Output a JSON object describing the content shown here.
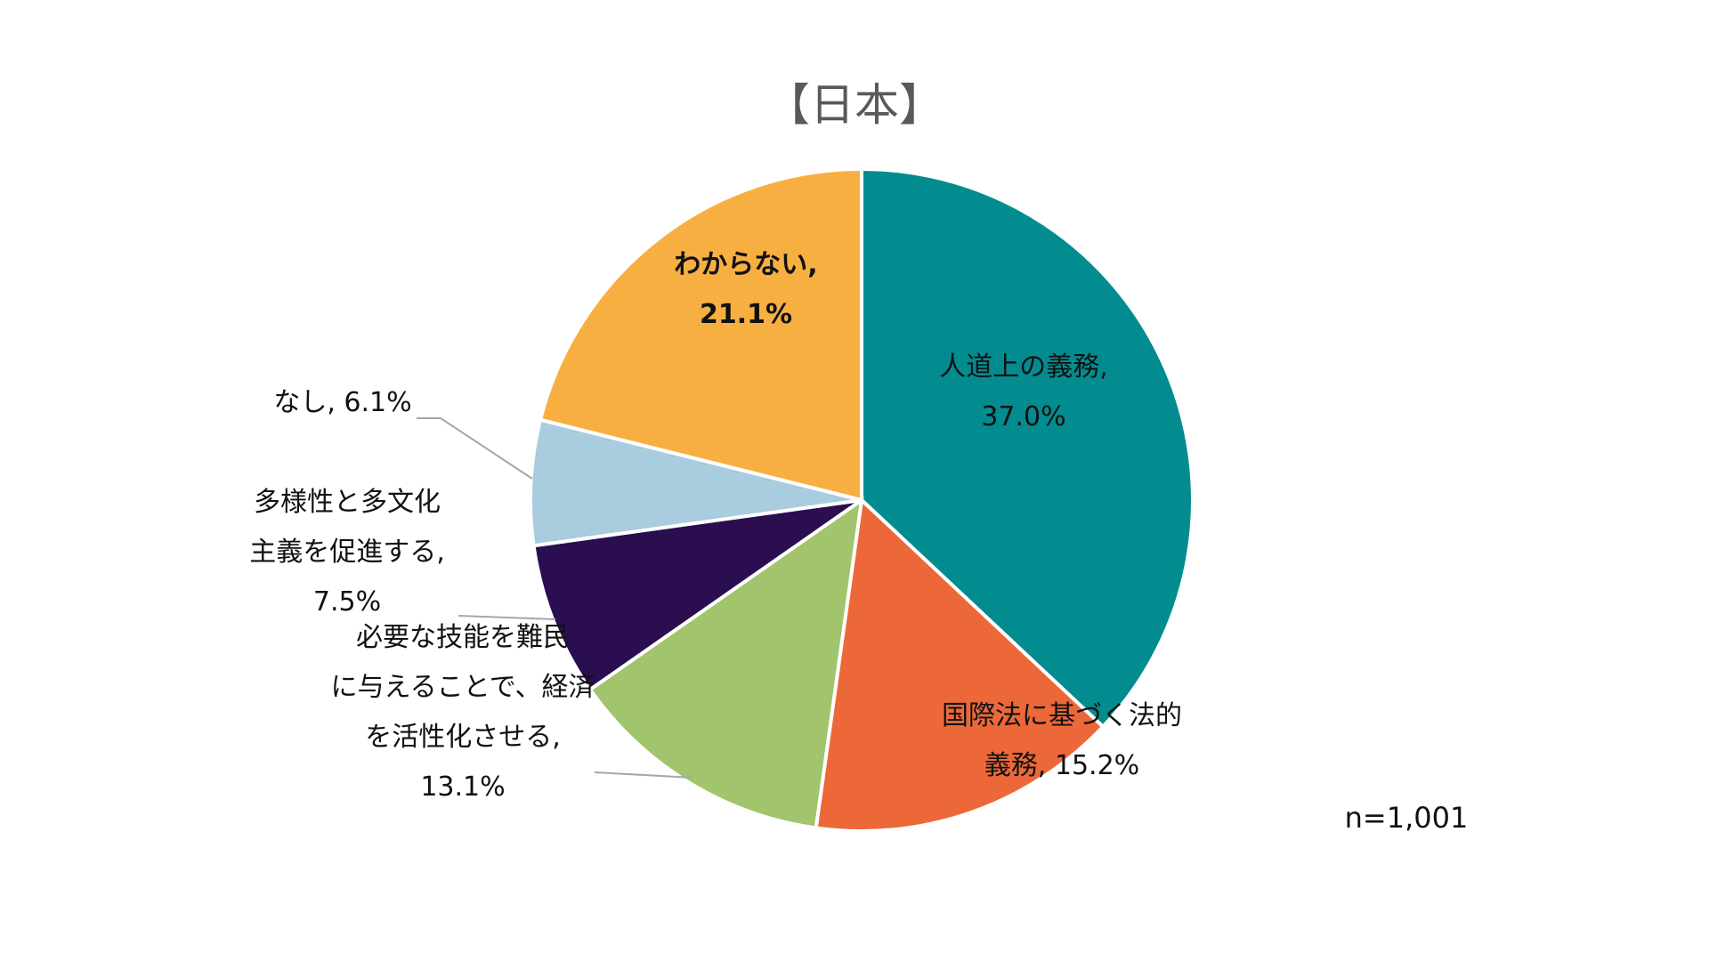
{
  "chart_data": {
    "type": "pie",
    "title": "【日本】",
    "note": "n=1,001",
    "unit": "%",
    "slices": [
      {
        "label_lines": [
          "人道上の義務,",
          "37.0%"
        ],
        "value": 37.0,
        "color": "#038C8F",
        "bold": false
      },
      {
        "label_lines": [
          "国際法に基づく法的",
          "義務, 15.2%"
        ],
        "value": 15.2,
        "color": "#EC6839",
        "bold": false
      },
      {
        "label_lines": [
          "必要な技能を難民",
          "に与えることで、経済",
          "を活性化させる,",
          "13.1%"
        ],
        "value": 13.1,
        "color": "#A1C46C",
        "bold": false
      },
      {
        "label_lines": [
          "多様性と多文化",
          "主義を促進する,",
          "7.5%"
        ],
        "value": 7.5,
        "color": "#2A0E4F",
        "bold": false
      },
      {
        "label_lines": [
          "なし, 6.1%"
        ],
        "value": 6.1,
        "color": "#A9CCDE",
        "bold": false
      },
      {
        "label_lines": [
          "わからない,",
          "21.1%"
        ],
        "value": 21.1,
        "color": "#F8AF42",
        "bold": true
      }
    ]
  }
}
